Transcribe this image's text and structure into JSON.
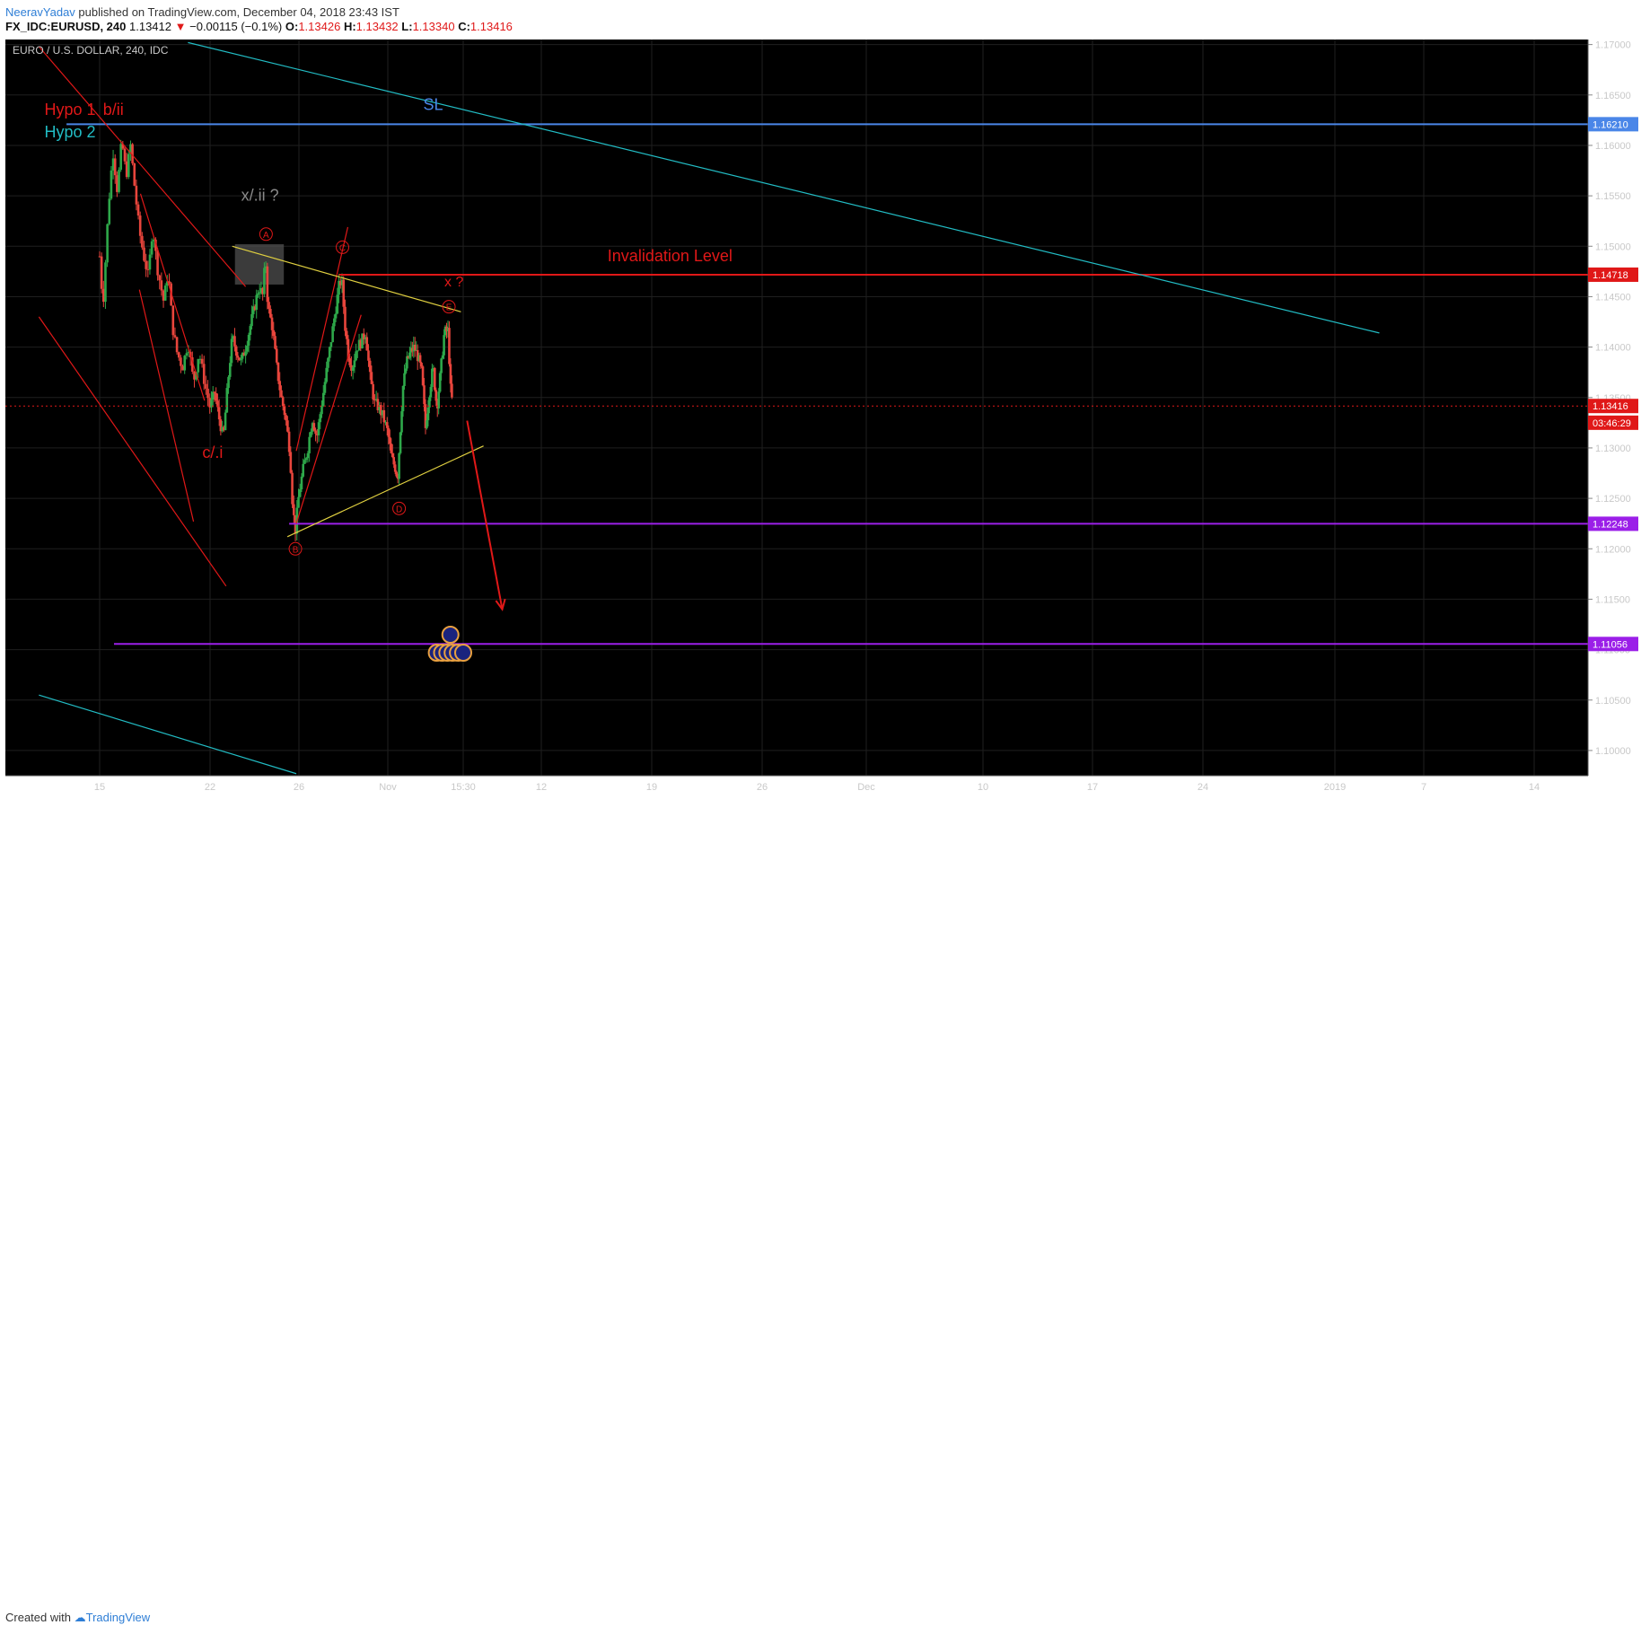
{
  "header": {
    "author": "NeeravYadav",
    "published": " published on TradingView.com, December 04, 2018 23:43 IST",
    "symbol": "FX_IDC:EURUSD, 240",
    "last": "1.13412",
    "change_arrow": "▼",
    "change": "−0.00115 (−0.1%)",
    "o_label": "O:",
    "o_val": "1.13426",
    "h_label": "H:",
    "h_val": "1.13432",
    "l_label": "L:",
    "l_val": "1.13340",
    "c_label": "C:",
    "c_val": "1.13416"
  },
  "footer": {
    "created": "Created with",
    "brand": "TradingView"
  },
  "colors": {
    "background": "#000000",
    "grid": "#1f1f1f",
    "axis_text": "#c8c8c8",
    "up": "#2ea84a",
    "down": "#e8453c",
    "red": "#e01818",
    "cyan": "#22bcc4",
    "blue": "#4a86e8",
    "purple": "#9b1fe8",
    "yellow": "#e0d040",
    "grey_text": "#8a8a8a"
  },
  "chart_data": {
    "type": "candlestick",
    "title": "EURO / U.S. DOLLAR, 240, IDC",
    "ylim": [
      1.0975,
      1.1705
    ],
    "y_ticks": [
      "1.17000",
      "1.16500",
      "1.16000",
      "1.15500",
      "1.15000",
      "1.14500",
      "1.14000",
      "1.13500",
      "1.13000",
      "1.12500",
      "1.12000",
      "1.11500",
      "1.11000",
      "1.10500",
      "1.10000"
    ],
    "x_ticks": [
      {
        "label": "15",
        "i": 0
      },
      {
        "label": "22",
        "i": 1
      },
      {
        "label": "26",
        "i": 2
      },
      {
        "label": "Nov",
        "i": 3
      },
      {
        "label": "15:30",
        "i": 4
      },
      {
        "label": "12",
        "i": 5
      },
      {
        "label": "19",
        "i": 6
      },
      {
        "label": "26",
        "i": 7
      },
      {
        "label": "Dec",
        "i": 8
      },
      {
        "label": "10",
        "i": 9
      },
      {
        "label": "17",
        "i": 10
      },
      {
        "label": "24",
        "i": 11
      },
      {
        "label": "2019",
        "i": 12
      },
      {
        "label": "7",
        "i": 13
      },
      {
        "label": "14",
        "i": 14
      }
    ],
    "price_path": [
      [
        0,
        1.149
      ],
      [
        0.03,
        1.144
      ],
      [
        0.08,
        1.154
      ],
      [
        0.12,
        1.1595
      ],
      [
        0.16,
        1.1555
      ],
      [
        0.2,
        1.1605
      ],
      [
        0.24,
        1.157
      ],
      [
        0.28,
        1.16
      ],
      [
        0.32,
        1.1555
      ],
      [
        0.36,
        1.1515
      ],
      [
        0.4,
        1.149
      ],
      [
        0.44,
        1.147
      ],
      [
        0.48,
        1.152
      ],
      [
        0.52,
        1.148
      ],
      [
        0.58,
        1.1445
      ],
      [
        0.62,
        1.1475
      ],
      [
        0.66,
        1.142
      ],
      [
        0.7,
        1.1395
      ],
      [
        0.75,
        1.138
      ],
      [
        0.8,
        1.1405
      ],
      [
        0.85,
        1.1365
      ],
      [
        0.9,
        1.1395
      ],
      [
        0.95,
        1.1365
      ],
      [
        1.0,
        1.134
      ],
      [
        1.05,
        1.1355
      ],
      [
        1.1,
        1.133
      ],
      [
        1.15,
        1.131
      ],
      [
        1.2,
        1.1365
      ],
      [
        1.25,
        1.141
      ],
      [
        1.3,
        1.1395
      ],
      [
        1.35,
        1.1385
      ],
      [
        1.4,
        1.14
      ],
      [
        1.45,
        1.142
      ],
      [
        1.5,
        1.144
      ],
      [
        1.55,
        1.146
      ],
      [
        1.6,
        1.145
      ],
      [
        1.62,
        1.1496
      ],
      [
        1.65,
        1.144
      ],
      [
        1.7,
        1.142
      ],
      [
        1.75,
        1.138
      ],
      [
        1.8,
        1.135
      ],
      [
        1.85,
        1.133
      ],
      [
        1.9,
        1.1295
      ],
      [
        1.93,
        1.124
      ],
      [
        1.96,
        1.1219
      ],
      [
        2.0,
        1.1255
      ],
      [
        2.05,
        1.128
      ],
      [
        2.1,
        1.13
      ],
      [
        2.15,
        1.133
      ],
      [
        2.2,
        1.131
      ],
      [
        2.25,
        1.134
      ],
      [
        2.3,
        1.137
      ],
      [
        2.35,
        1.14
      ],
      [
        2.4,
        1.143
      ],
      [
        2.45,
        1.146
      ],
      [
        2.48,
        1.1468
      ],
      [
        2.52,
        1.142
      ],
      [
        2.56,
        1.139
      ],
      [
        2.6,
        1.138
      ],
      [
        2.65,
        1.14
      ],
      [
        2.7,
        1.1405
      ],
      [
        2.75,
        1.1415
      ],
      [
        2.8,
        1.137
      ],
      [
        2.85,
        1.1345
      ],
      [
        2.9,
        1.134
      ],
      [
        2.95,
        1.133
      ],
      [
        3.0,
        1.1315
      ],
      [
        3.05,
        1.129
      ],
      [
        3.1,
        1.128
      ],
      [
        3.13,
        1.127
      ],
      [
        3.16,
        1.131
      ],
      [
        3.2,
        1.136
      ],
      [
        3.25,
        1.1385
      ],
      [
        3.3,
        1.1395
      ],
      [
        3.35,
        1.14
      ],
      [
        3.4,
        1.139
      ],
      [
        3.45,
        1.1375
      ],
      [
        3.5,
        1.132
      ],
      [
        3.55,
        1.1355
      ],
      [
        3.6,
        1.138
      ],
      [
        3.65,
        1.134
      ],
      [
        3.7,
        1.1375
      ],
      [
        3.75,
        1.1415
      ],
      [
        3.8,
        1.1416
      ],
      [
        3.83,
        1.136
      ],
      [
        3.86,
        1.1342
      ]
    ],
    "current_price": 1.13416,
    "price_labels": [
      {
        "text": "1.16210",
        "value": 1.1621,
        "color": "#4a86e8"
      },
      {
        "text": "1.14718",
        "value": 1.14718,
        "color": "#e01818"
      },
      {
        "text": "1.13416",
        "value": 1.13416,
        "color": "#e01818"
      },
      {
        "text": "03:46:29",
        "value": 1.1325,
        "color": "#e01818"
      },
      {
        "text": "1.12248",
        "value": 1.12248,
        "color": "#9b1fe8"
      },
      {
        "text": "1.11056",
        "value": 1.11056,
        "color": "#9b1fe8"
      }
    ],
    "hlines": [
      {
        "value": 1.1621,
        "x0": -0.3,
        "x1": 15,
        "color": "#4a86e8",
        "width": 2
      },
      {
        "value": 1.14718,
        "x0": 2.45,
        "x1": 15,
        "color": "#e01818",
        "width": 2
      },
      {
        "value": 1.12248,
        "x0": 1.89,
        "x1": 15,
        "color": "#9b1fe8",
        "width": 2
      },
      {
        "value": 1.11056,
        "x0": 0.13,
        "x1": 15,
        "color": "#9b1fe8",
        "width": 2
      }
    ],
    "trendlines": [
      {
        "x0": -0.55,
        "y0": 1.1698,
        "x1": 1.4,
        "y1": 1.146,
        "color": "#e01818"
      },
      {
        "x0": -0.55,
        "y0": 1.143,
        "x1": 1.18,
        "y1": 1.1163,
        "color": "#e01818"
      },
      {
        "x0": 0.37,
        "y0": 1.1552,
        "x1": 0.95,
        "y1": 1.1347,
        "color": "#e01818"
      },
      {
        "x0": 0.36,
        "y0": 1.1457,
        "x1": 0.85,
        "y1": 1.1227,
        "color": "#e01818"
      },
      {
        "x0": 1.97,
        "y0": 1.1297,
        "x1": 2.55,
        "y1": 1.1519,
        "color": "#e01818"
      },
      {
        "x0": 1.97,
        "y0": 1.1225,
        "x1": 2.7,
        "y1": 1.1432,
        "color": "#e01818"
      },
      {
        "x0": 1.25,
        "y0": 1.15,
        "x1": 3.97,
        "y1": 1.1435,
        "color": "#e0d040"
      },
      {
        "x0": 1.87,
        "y0": 1.1212,
        "x1": 4.26,
        "y1": 1.1302,
        "color": "#e0d040"
      },
      {
        "x0": 0.8,
        "y0": 1.1702,
        "x1": 12.5,
        "y1": 1.1414,
        "color": "#22bcc4"
      },
      {
        "x0": -0.55,
        "y0": 1.1055,
        "x1": 1.97,
        "y1": 1.0977,
        "color": "#22bcc4"
      }
    ],
    "arrow": {
      "x0": 4.05,
      "y0": 1.1327,
      "x1": 4.5,
      "y1": 1.114,
      "color": "#e01818"
    },
    "box": {
      "x0": 1.28,
      "y0": 1.1502,
      "x1": 1.83,
      "y1": 1.1462
    },
    "text_annotations": [
      {
        "text": "Hypo 1",
        "x": -0.5,
        "y": 1.163,
        "color": "#e01818",
        "size": 18
      },
      {
        "text": "b/ii",
        "x": 0.03,
        "y": 1.163,
        "color": "#e01818",
        "size": 18
      },
      {
        "text": "Hypo 2",
        "x": -0.5,
        "y": 1.1608,
        "color": "#22bcc4",
        "size": 18
      },
      {
        "text": "SL",
        "x": 3.47,
        "y": 1.1635,
        "color": "#4a86e8",
        "size": 18
      },
      {
        "text": "x/.ii ?",
        "x": 1.35,
        "y": 1.1545,
        "color": "#8a8a8a",
        "size": 18
      },
      {
        "text": "c/.i",
        "x": 0.93,
        "y": 1.129,
        "color": "#e01818",
        "size": 18
      },
      {
        "text": "x ?",
        "x": 3.75,
        "y": 1.146,
        "color": "#e01818",
        "size": 16
      },
      {
        "text": "Invalidation Level",
        "x": 5.6,
        "y": 1.1485,
        "color": "#e01818",
        "size": 18
      }
    ],
    "wave_labels": [
      {
        "text": "A",
        "x": 1.63,
        "y": 1.1512
      },
      {
        "text": "B",
        "x": 1.96,
        "y": 1.12
      },
      {
        "text": "C",
        "x": 2.49,
        "y": 1.1499
      },
      {
        "text": "D",
        "x": 3.15,
        "y": 1.124
      },
      {
        "text": "E",
        "x": 3.81,
        "y": 1.144
      }
    ]
  }
}
